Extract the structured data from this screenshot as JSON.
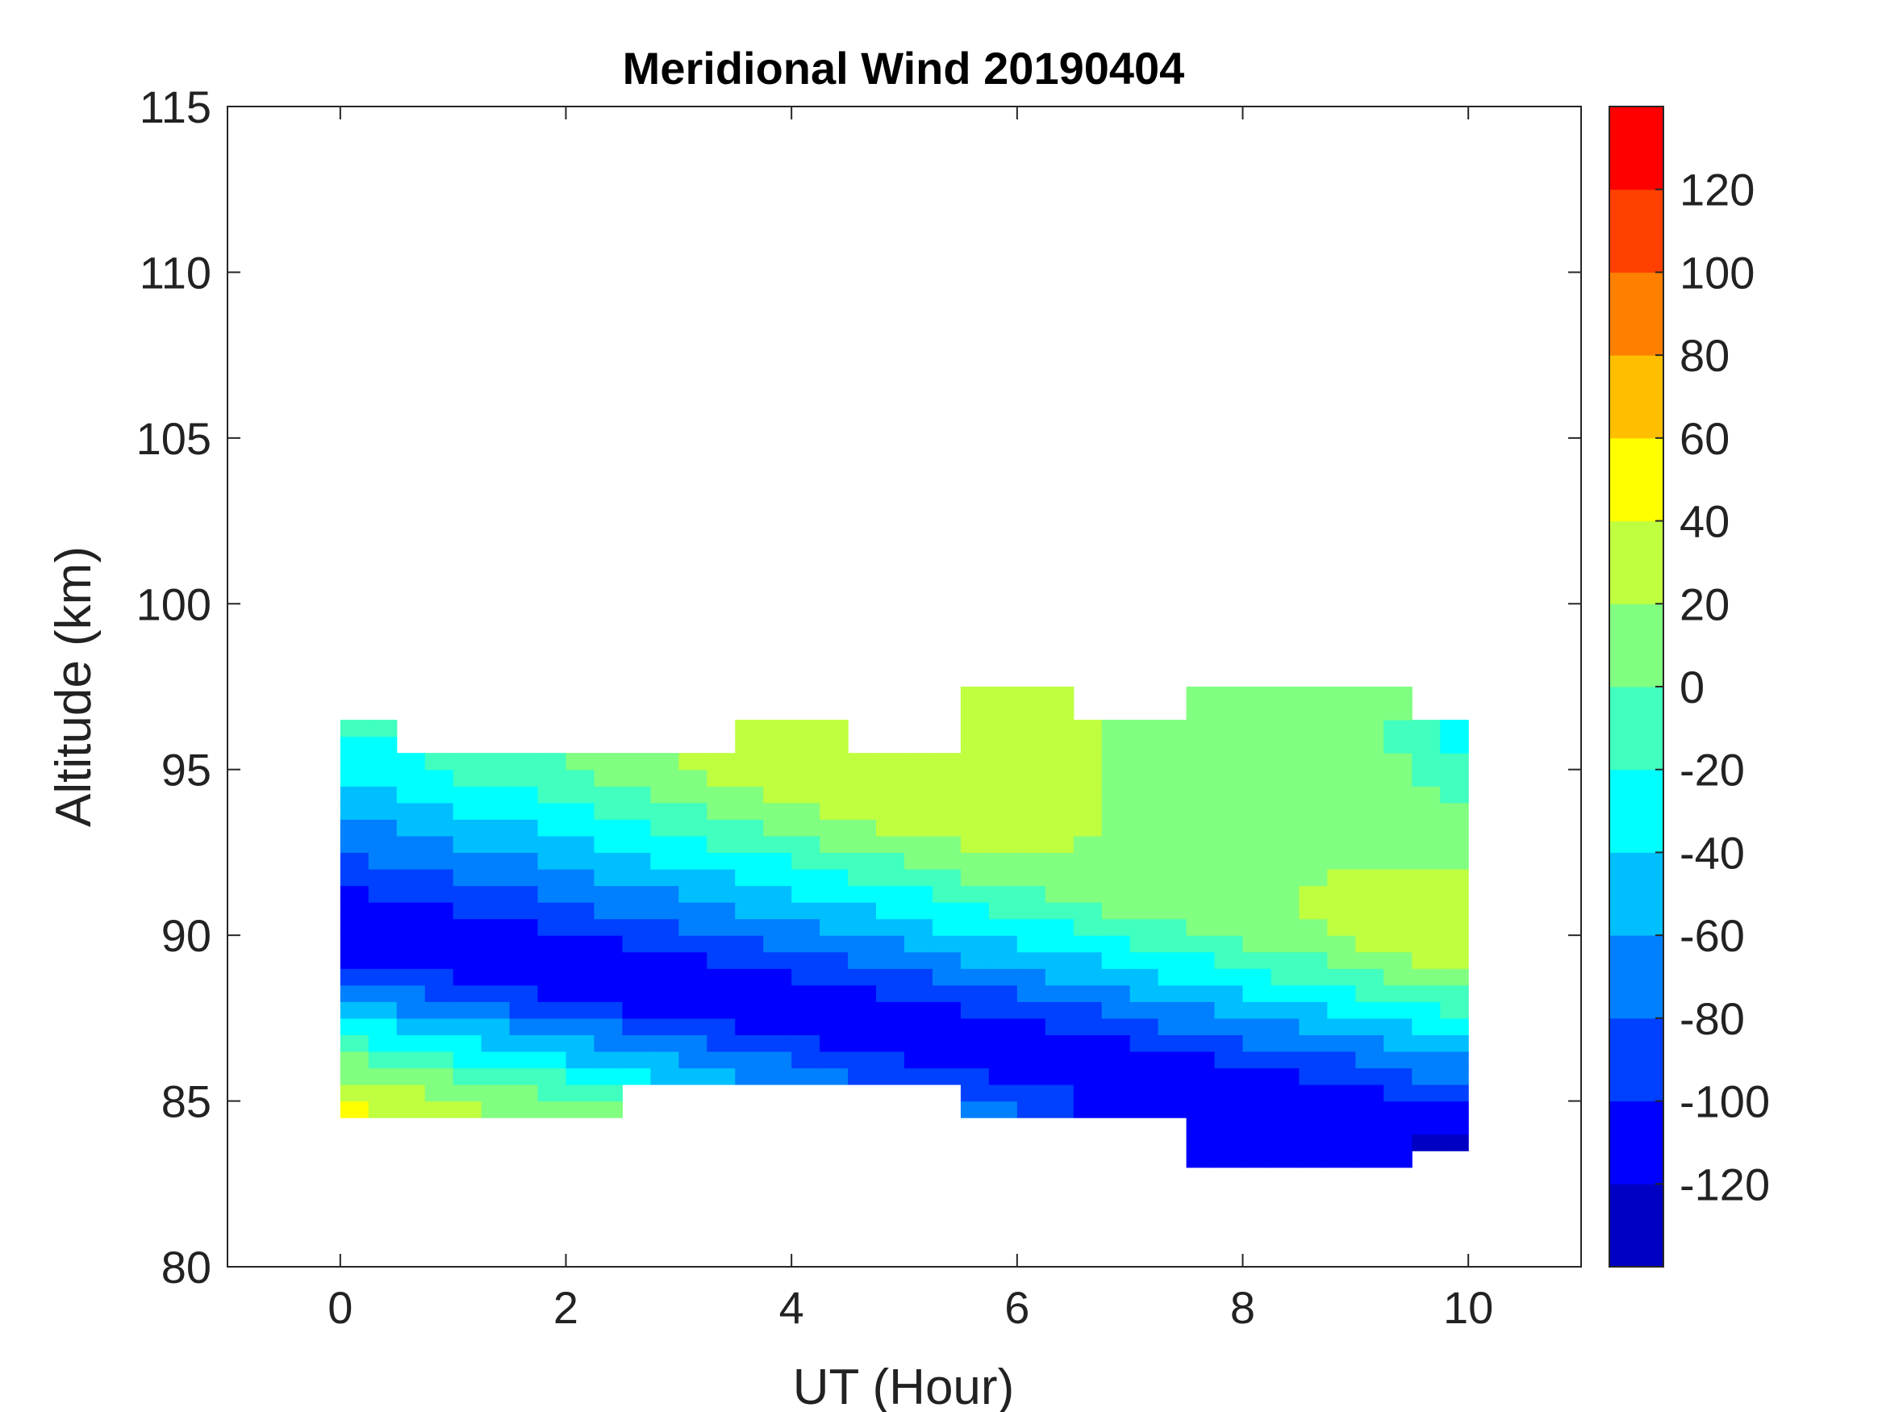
{
  "chart_data": {
    "type": "heatmap",
    "subtype": "filled-contour",
    "title": "Meridional Wind 20190404",
    "xlabel": "UT (Hour)",
    "ylabel": "Altitude (km)",
    "xlim": [
      -1,
      11
    ],
    "ylim": [
      80,
      115
    ],
    "xticks": [
      "0",
      "2",
      "4",
      "6",
      "8",
      "10"
    ],
    "xtick_values": [
      0,
      2,
      4,
      6,
      8,
      10
    ],
    "yticks": [
      "80",
      "85",
      "90",
      "95",
      "100",
      "105",
      "110",
      "115"
    ],
    "ytick_values": [
      80,
      85,
      90,
      95,
      100,
      105,
      110,
      115
    ],
    "x": [
      0,
      1,
      2,
      3,
      4,
      5,
      6,
      7,
      8,
      9,
      10
    ],
    "y": [
      83,
      84,
      85,
      86,
      87,
      88,
      89,
      90,
      91,
      92,
      93,
      94,
      95,
      96,
      97,
      98
    ],
    "z_by_x": [
      [
        null,
        null,
        45,
        11,
        -23,
        -57,
        -91,
        -125,
        -107,
        -89,
        -71,
        -53,
        -35,
        -17,
        null,
        null
      ],
      [
        null,
        null,
        25,
        -9,
        -43,
        -77,
        -111,
        -113,
        -94,
        -75,
        -56,
        -37,
        -17,
        null,
        null,
        null
      ],
      [
        null,
        null,
        4,
        -30,
        -64,
        -98,
        -121,
        -101,
        -80,
        -60,
        -39,
        -19,
        1,
        null,
        null,
        null
      ],
      [
        null,
        null,
        null,
        -50,
        -84,
        -118,
        -108,
        -86,
        -65,
        -43,
        -21,
        0,
        22,
        null,
        null,
        null
      ],
      [
        null,
        null,
        null,
        -71,
        -105,
        -116,
        -93,
        -70,
        -47,
        -25,
        -2,
        21,
        35,
        35,
        null,
        null
      ],
      [
        null,
        null,
        null,
        -91,
        -125,
        -101,
        -77,
        -53,
        -29,
        -5,
        19,
        35,
        35,
        null,
        null,
        null
      ],
      [
        null,
        null,
        -77,
        -111,
        -110,
        -85,
        -59,
        -34,
        -9,
        16,
        30,
        30,
        30,
        30,
        30,
        null
      ],
      [
        null,
        null,
        -117,
        -120,
        -93,
        -67,
        -41,
        -14,
        12,
        15,
        15,
        15,
        15,
        15,
        null,
        null
      ],
      [
        -103,
        -113,
        -122,
        -103,
        -75,
        -48,
        -20,
        7,
        15,
        15,
        15,
        15,
        15,
        15,
        15,
        null
      ],
      [
        -109,
        -119,
        -113,
        -85,
        -56,
        -27,
        2,
        25,
        25,
        20,
        15,
        15,
        15,
        15,
        15,
        null
      ],
      [
        null,
        -125,
        -95,
        -65,
        -35,
        -5,
        25,
        35,
        30,
        20,
        10,
        0,
        -20,
        -35,
        null,
        null
      ]
    ],
    "colorbar": {
      "levels": [
        -140,
        -120,
        -100,
        -80,
        -60,
        -40,
        -20,
        0,
        20,
        40,
        60,
        80,
        100,
        120,
        140
      ],
      "tick_labels": [
        "-120",
        "-100",
        "-80",
        "-60",
        "-40",
        "-20",
        "0",
        "20",
        "40",
        "60",
        "80",
        "100",
        "120"
      ],
      "tick_values": [
        -120,
        -100,
        -80,
        -60,
        -40,
        -20,
        0,
        20,
        40,
        60,
        80,
        100,
        120
      ],
      "colors": [
        "#0000c4",
        "#0000ff",
        "#0040ff",
        "#0080ff",
        "#00bfff",
        "#00ffff",
        "#40ffbf",
        "#80ff80",
        "#bfff40",
        "#ffff00",
        "#ffbf00",
        "#ff8000",
        "#ff4000",
        "#ff0000"
      ]
    },
    "grid": false
  }
}
